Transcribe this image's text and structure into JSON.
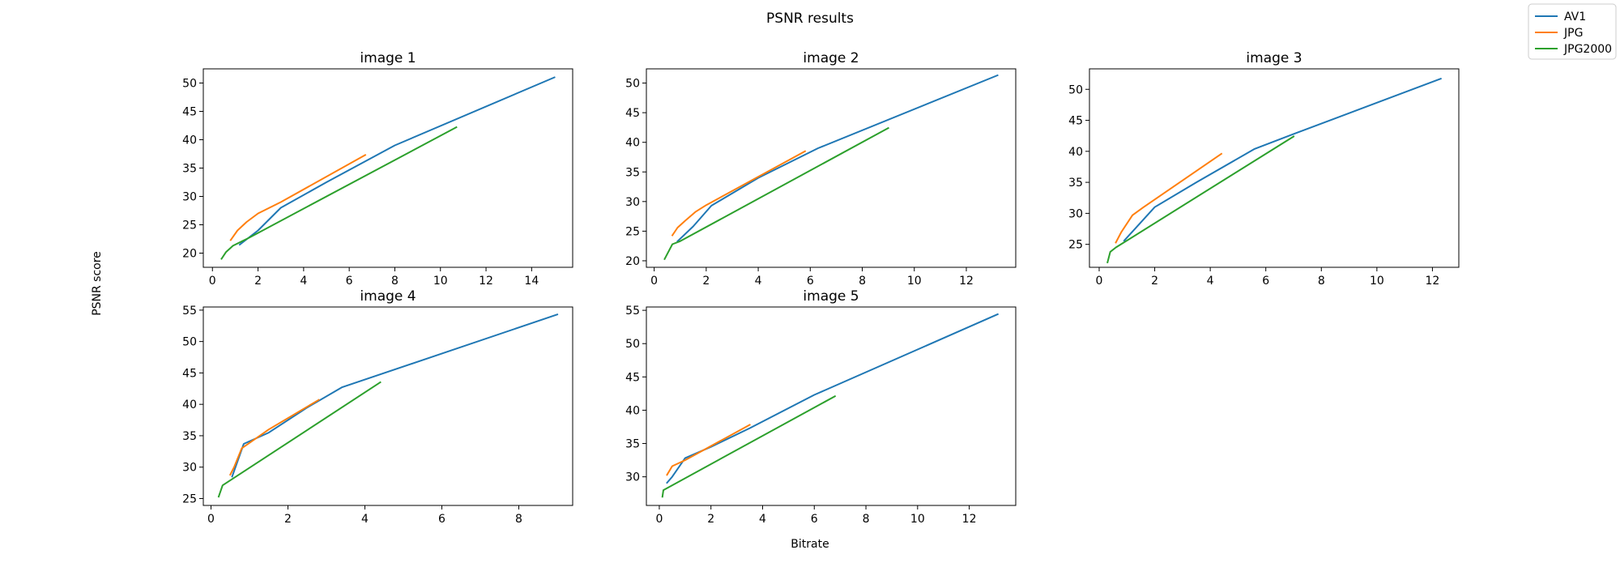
{
  "figure": {
    "title": "PSNR results",
    "xlabel": "Bitrate",
    "ylabel": "PSNR score"
  },
  "colors": {
    "AV1": "#1f77b4",
    "JPG": "#ff7f0e",
    "JPG2000": "#2ca02c"
  },
  "legend": {
    "placement": "top-right",
    "entries": [
      "AV1",
      "JPG",
      "JPG2000"
    ]
  },
  "chart_data": [
    {
      "type": "line",
      "title": "image 1",
      "xlim": [
        -0.4,
        15.8
      ],
      "ylim": [
        17.5,
        52.5
      ],
      "xticks": [
        0,
        2,
        4,
        6,
        8,
        10,
        12,
        14
      ],
      "yticks": [
        20,
        25,
        30,
        35,
        40,
        45,
        50
      ],
      "series": [
        {
          "name": "AV1",
          "x": [
            1.2,
            2.0,
            3.0,
            5.0,
            8.0,
            15.0
          ],
          "y": [
            21.5,
            24.0,
            28.0,
            32.5,
            39.0,
            51.0
          ]
        },
        {
          "name": "JPG",
          "x": [
            0.8,
            1.1,
            1.5,
            2.0,
            3.0,
            6.7
          ],
          "y": [
            22.3,
            24.0,
            25.5,
            27.0,
            29.0,
            37.3
          ]
        },
        {
          "name": "JPG2000",
          "x": [
            0.4,
            0.6,
            0.9,
            1.3,
            1.6,
            10.7
          ],
          "y": [
            19.0,
            20.2,
            21.3,
            22.1,
            22.7,
            42.2
          ]
        }
      ]
    },
    {
      "type": "line",
      "title": "image 2",
      "xlim": [
        -0.3,
        13.9
      ],
      "ylim": [
        18.9,
        52.4
      ],
      "xticks": [
        0,
        2,
        4,
        6,
        8,
        10,
        12
      ],
      "yticks": [
        20,
        25,
        30,
        35,
        40,
        45,
        50
      ],
      "series": [
        {
          "name": "AV1",
          "x": [
            0.9,
            1.5,
            2.2,
            4.0,
            6.3,
            13.2
          ],
          "y": [
            23.3,
            25.8,
            29.3,
            34.0,
            39.0,
            51.3
          ]
        },
        {
          "name": "JPG",
          "x": [
            0.7,
            0.9,
            1.2,
            1.6,
            2.0,
            5.8
          ],
          "y": [
            24.3,
            25.6,
            26.8,
            28.3,
            29.4,
            38.5
          ]
        },
        {
          "name": "JPG2000",
          "x": [
            0.4,
            0.7,
            1.0,
            9.0
          ],
          "y": [
            20.3,
            22.8,
            23.3,
            42.4
          ]
        }
      ]
    },
    {
      "type": "line",
      "title": "image 3",
      "xlim": [
        -0.35,
        12.95
      ],
      "ylim": [
        21.3,
        53.3
      ],
      "xticks": [
        0,
        2,
        4,
        6,
        8,
        10,
        12
      ],
      "yticks": [
        25,
        30,
        35,
        40,
        45,
        50
      ],
      "series": [
        {
          "name": "AV1",
          "x": [
            0.9,
            2.0,
            3.5,
            5.6,
            7.0,
            12.3
          ],
          "y": [
            25.6,
            31.0,
            35.0,
            40.4,
            42.8,
            51.7
          ]
        },
        {
          "name": "JPG",
          "x": [
            0.6,
            0.8,
            1.2,
            1.6,
            4.4
          ],
          "y": [
            25.3,
            27.0,
            29.7,
            31.0,
            39.6
          ]
        },
        {
          "name": "JPG2000",
          "x": [
            0.3,
            0.4,
            0.6,
            7.0
          ],
          "y": [
            22.1,
            23.8,
            24.5,
            42.4
          ]
        }
      ]
    },
    {
      "type": "line",
      "title": "image 4",
      "xlim": [
        -0.2,
        9.4
      ],
      "ylim": [
        23.9,
        55.5
      ],
      "xticks": [
        0,
        2,
        4,
        6,
        8
      ],
      "yticks": [
        25,
        30,
        35,
        40,
        45,
        50,
        55
      ],
      "series": [
        {
          "name": "AV1",
          "x": [
            0.55,
            0.85,
            1.5,
            2.5,
            3.4,
            9.0
          ],
          "y": [
            28.5,
            33.7,
            35.5,
            39.5,
            42.7,
            54.3
          ]
        },
        {
          "name": "JPG",
          "x": [
            0.5,
            0.6,
            0.8,
            1.5,
            2.8
          ],
          "y": [
            28.8,
            30.0,
            33.0,
            36.0,
            40.7
          ]
        },
        {
          "name": "JPG2000",
          "x": [
            0.2,
            0.3,
            4.4
          ],
          "y": [
            25.3,
            27.1,
            43.5
          ]
        }
      ]
    },
    {
      "type": "line",
      "title": "image 5",
      "xlim": [
        -0.5,
        13.8
      ],
      "ylim": [
        25.7,
        55.5
      ],
      "xticks": [
        0,
        2,
        4,
        6,
        8,
        10,
        12
      ],
      "yticks": [
        30,
        35,
        40,
        45,
        50,
        55
      ],
      "series": [
        {
          "name": "AV1",
          "x": [
            0.3,
            0.5,
            1.0,
            2.0,
            3.5,
            6.0,
            13.1
          ],
          "y": [
            29.1,
            30.0,
            32.8,
            34.5,
            37.3,
            42.3,
            54.4
          ]
        },
        {
          "name": "JPG",
          "x": [
            0.3,
            0.5,
            1.0,
            3.5
          ],
          "y": [
            30.3,
            31.6,
            32.5,
            37.8
          ]
        },
        {
          "name": "JPG2000",
          "x": [
            0.12,
            0.16,
            6.8
          ],
          "y": [
            27.0,
            28.0,
            42.1
          ]
        }
      ]
    }
  ]
}
